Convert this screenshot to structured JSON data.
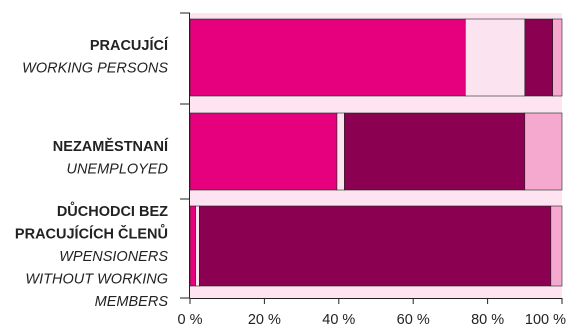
{
  "chart_data": {
    "type": "bar",
    "orientation": "horizontal",
    "stacked": true,
    "categories": [
      {
        "lines": [
          "PRACUJÍCÍ"
        ],
        "sublines": [
          "WORKING PERSONS"
        ]
      },
      {
        "lines": [
          "NEZAMĚSTNANÍ"
        ],
        "sublines": [
          "UNEMPLOYED"
        ]
      },
      {
        "lines": [
          "DŮCHODCI BEZ",
          "PRACUJÍCÍCH ČLENŮ"
        ],
        "sublines": [
          "WPENSIONERS",
          "WITHOUT WORKING",
          "MEMBERS"
        ]
      }
    ],
    "series": [
      {
        "values": [
          74,
          39.5,
          1.5
        ]
      },
      {
        "values": [
          16,
          2,
          1
        ]
      },
      {
        "values": [
          7.5,
          48.5,
          94.5
        ]
      },
      {
        "values": [
          2.5,
          10,
          3
        ]
      }
    ],
    "series_colors": [
      "#e6007e",
      "#fbe3ef",
      "#8b0050",
      "#f5a9cf"
    ],
    "band_color": "#fde4f0",
    "x_ticks": [
      "0 %",
      "20 %",
      "40 %",
      "60 %",
      "80 %",
      "100 %"
    ],
    "xlim": [
      0,
      100
    ],
    "grid": false,
    "legend": "none"
  }
}
